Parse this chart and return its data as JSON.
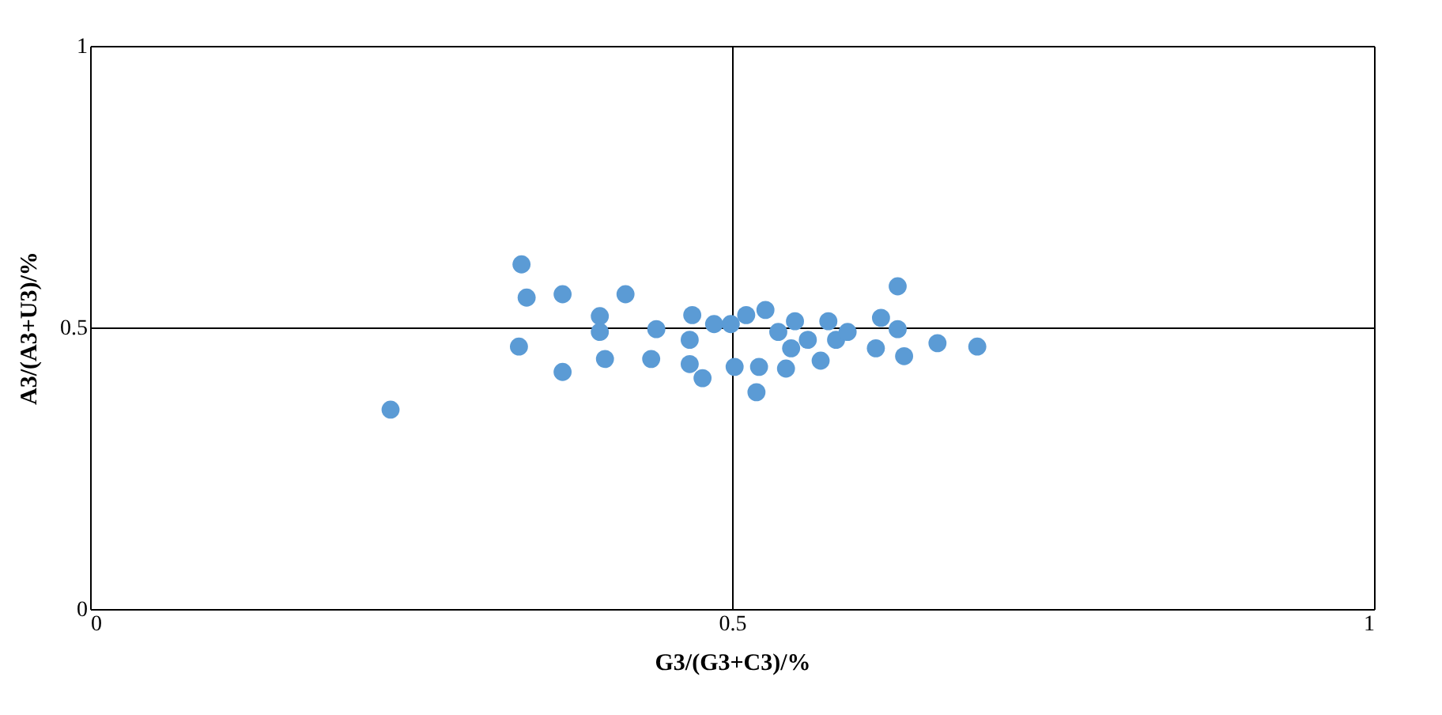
{
  "chart_data": {
    "type": "scatter",
    "xlabel": "G3/(G3+C3)/%",
    "ylabel": "A3/(A3+U3)/%",
    "xlim": [
      0,
      1
    ],
    "ylim": [
      0,
      1
    ],
    "xticks": [
      0,
      0.5,
      1
    ],
    "yticks": [
      0,
      0.5,
      1
    ],
    "grid": true,
    "marker": "circle",
    "series": [
      {
        "color": "#5b9bd5",
        "x": [
          0.234,
          0.336,
          0.34,
          0.334,
          0.368,
          0.368,
          0.417,
          0.397,
          0.397,
          0.401,
          0.437,
          0.441,
          0.469,
          0.467,
          0.467,
          0.477,
          0.486,
          0.499,
          0.502,
          0.511,
          0.521,
          0.519,
          0.526,
          0.536,
          0.546,
          0.542,
          0.549,
          0.559,
          0.569,
          0.575,
          0.581,
          0.59,
          0.616,
          0.612,
          0.629,
          0.629,
          0.634,
          0.66,
          0.691
        ],
        "values": [
          0.354,
          0.612,
          0.553,
          0.466,
          0.559,
          0.421,
          0.559,
          0.52,
          0.492,
          0.444,
          0.444,
          0.497,
          0.522,
          0.478,
          0.435,
          0.41,
          0.506,
          0.506,
          0.43,
          0.522,
          0.43,
          0.385,
          0.531,
          0.492,
          0.463,
          0.427,
          0.511,
          0.478,
          0.441,
          0.511,
          0.478,
          0.492,
          0.517,
          0.463,
          0.573,
          0.497,
          0.449,
          0.472,
          0.466
        ]
      }
    ]
  }
}
